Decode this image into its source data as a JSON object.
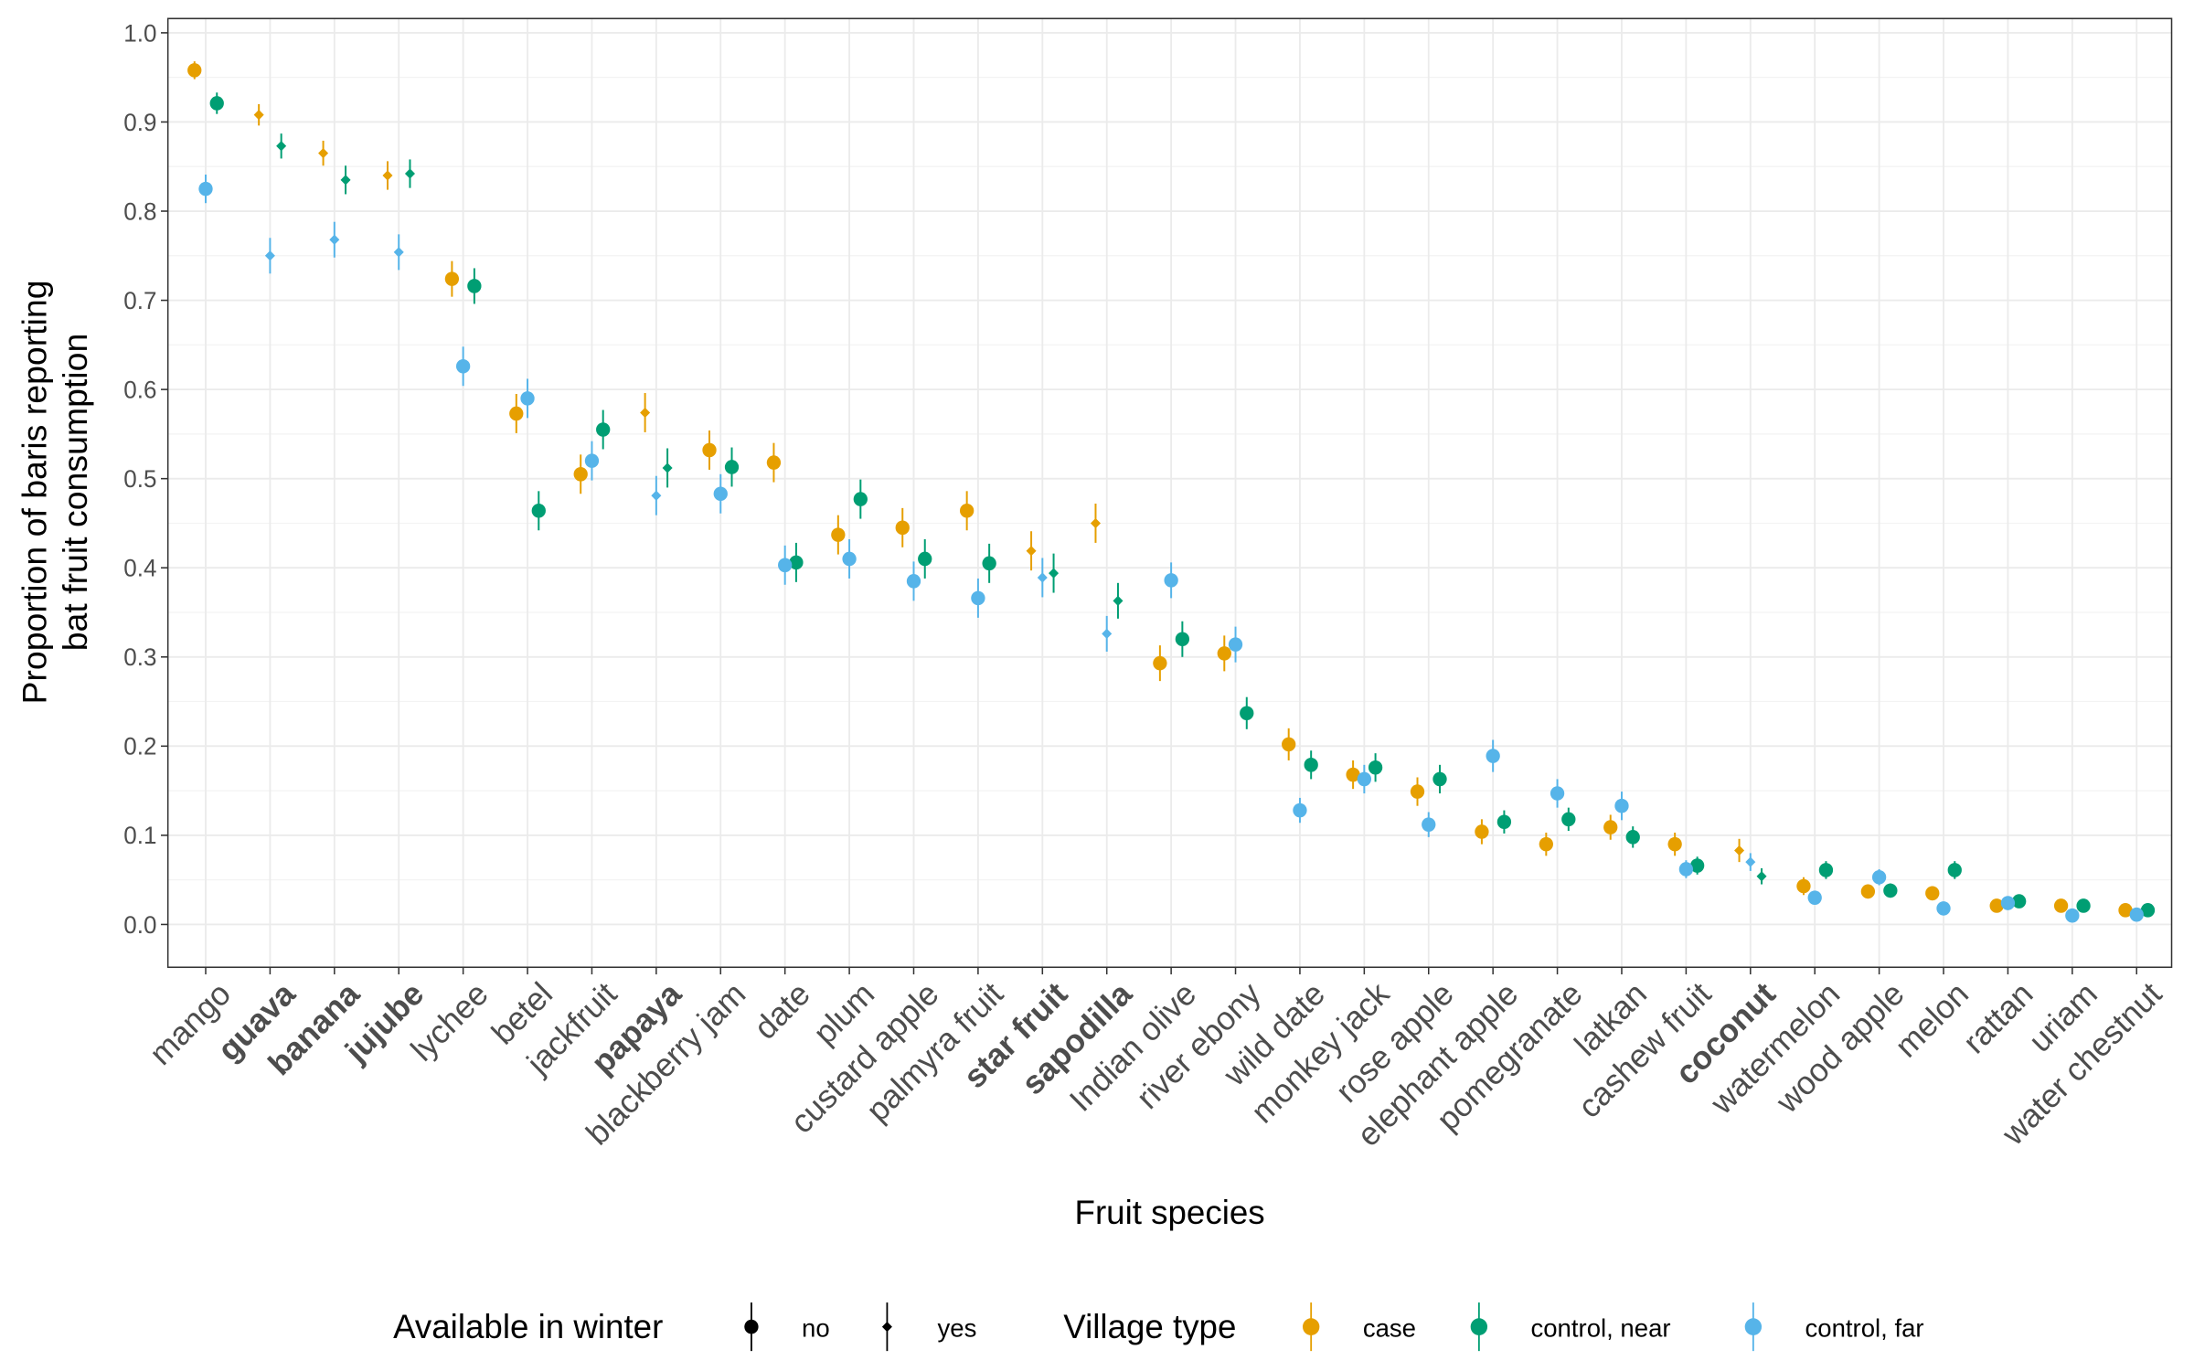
{
  "chart_data": {
    "type": "dotplot",
    "xlabel": "Fruit species",
    "ylabel": [
      "Proportion of baris reporting",
      "bat fruit consumption"
    ],
    "categories": [
      "mango",
      "guava",
      "banana",
      "jujube",
      "lychee",
      "betel",
      "jackfruit",
      "papaya",
      "blackberry jam",
      "date",
      "plum",
      "custard apple",
      "palmyra fruit",
      "star fruit",
      "sapodilla",
      "Indian olive",
      "river ebony",
      "wild date",
      "monkey jack",
      "rose apple",
      "elephant apple",
      "pomegranate",
      "latkan",
      "cashew fruit",
      "coconut",
      "watermelon",
      "wood apple",
      "melon",
      "rattan",
      "uriam",
      "water chestnut"
    ],
    "available_in_winter": [
      "no",
      "yes",
      "yes",
      "yes",
      "no",
      "no",
      "no",
      "yes",
      "no",
      "no",
      "no",
      "no",
      "no",
      "yes",
      "yes",
      "no",
      "no",
      "no",
      "no",
      "no",
      "no",
      "no",
      "no",
      "no",
      "yes",
      "no",
      "no",
      "no",
      "no",
      "no",
      "no"
    ],
    "shape_legend": {
      "title": "Available in winter",
      "labels": [
        "no",
        "yes"
      ]
    },
    "color_legend_title": "Village type",
    "series": [
      {
        "name": "case",
        "color": "#E69F00",
        "values": [
          0.958,
          0.908,
          0.865,
          0.84,
          0.724,
          0.573,
          0.505,
          0.574,
          0.532,
          0.518,
          0.437,
          0.445,
          0.464,
          0.419,
          0.45,
          0.293,
          0.304,
          0.202,
          0.168,
          0.149,
          0.104,
          0.09,
          0.109,
          0.09,
          0.083,
          0.043,
          0.037,
          0.035,
          0.021,
          0.021,
          0.016
        ],
        "errors": [
          0.01,
          0.012,
          0.014,
          0.016,
          0.02,
          0.022,
          0.022,
          0.022,
          0.022,
          0.022,
          0.022,
          0.022,
          0.022,
          0.022,
          0.022,
          0.02,
          0.02,
          0.018,
          0.016,
          0.016,
          0.014,
          0.013,
          0.014,
          0.013,
          0.013,
          0.01,
          0.008,
          0.008,
          0.006,
          0.006,
          0.006
        ]
      },
      {
        "name": "control, near",
        "color": "#009E73",
        "values": [
          0.921,
          0.873,
          0.835,
          0.842,
          0.716,
          0.464,
          0.555,
          0.512,
          0.513,
          0.406,
          0.477,
          0.41,
          0.405,
          0.394,
          0.363,
          0.32,
          0.237,
          0.179,
          0.176,
          0.163,
          0.115,
          0.118,
          0.098,
          0.066,
          0.054,
          0.061,
          0.038,
          0.061,
          0.026,
          0.021,
          0.016
        ],
        "errors": [
          0.012,
          0.014,
          0.016,
          0.016,
          0.02,
          0.022,
          0.022,
          0.022,
          0.022,
          0.022,
          0.022,
          0.022,
          0.022,
          0.022,
          0.02,
          0.02,
          0.018,
          0.016,
          0.016,
          0.016,
          0.013,
          0.013,
          0.012,
          0.01,
          0.009,
          0.01,
          0.008,
          0.01,
          0.006,
          0.006,
          0.006
        ]
      },
      {
        "name": "control, far",
        "color": "#56B4E9",
        "values": [
          0.825,
          0.75,
          0.768,
          0.754,
          0.626,
          0.59,
          0.52,
          0.481,
          0.483,
          0.403,
          0.41,
          0.385,
          0.366,
          0.389,
          0.326,
          0.386,
          0.314,
          0.128,
          0.163,
          0.112,
          0.189,
          0.147,
          0.133,
          0.062,
          0.07,
          0.03,
          0.053,
          0.018,
          0.024,
          0.01,
          0.011
        ],
        "errors": [
          0.016,
          0.02,
          0.02,
          0.02,
          0.022,
          0.022,
          0.022,
          0.022,
          0.022,
          0.022,
          0.022,
          0.022,
          0.022,
          0.022,
          0.02,
          0.02,
          0.02,
          0.014,
          0.016,
          0.014,
          0.018,
          0.016,
          0.016,
          0.01,
          0.01,
          0.007,
          0.009,
          0.006,
          0.006,
          0.004,
          0.004
        ]
      }
    ],
    "ylim": [
      -0.048,
      1.016
    ],
    "yticks": [
      {
        "value": 0,
        "label": "0.0"
      },
      0.1,
      0.2,
      0.3,
      0.4,
      0.5,
      0.6,
      0.7,
      0.8,
      0.9,
      {
        "value": 1,
        "label": "1.0"
      }
    ],
    "grid": true
  }
}
